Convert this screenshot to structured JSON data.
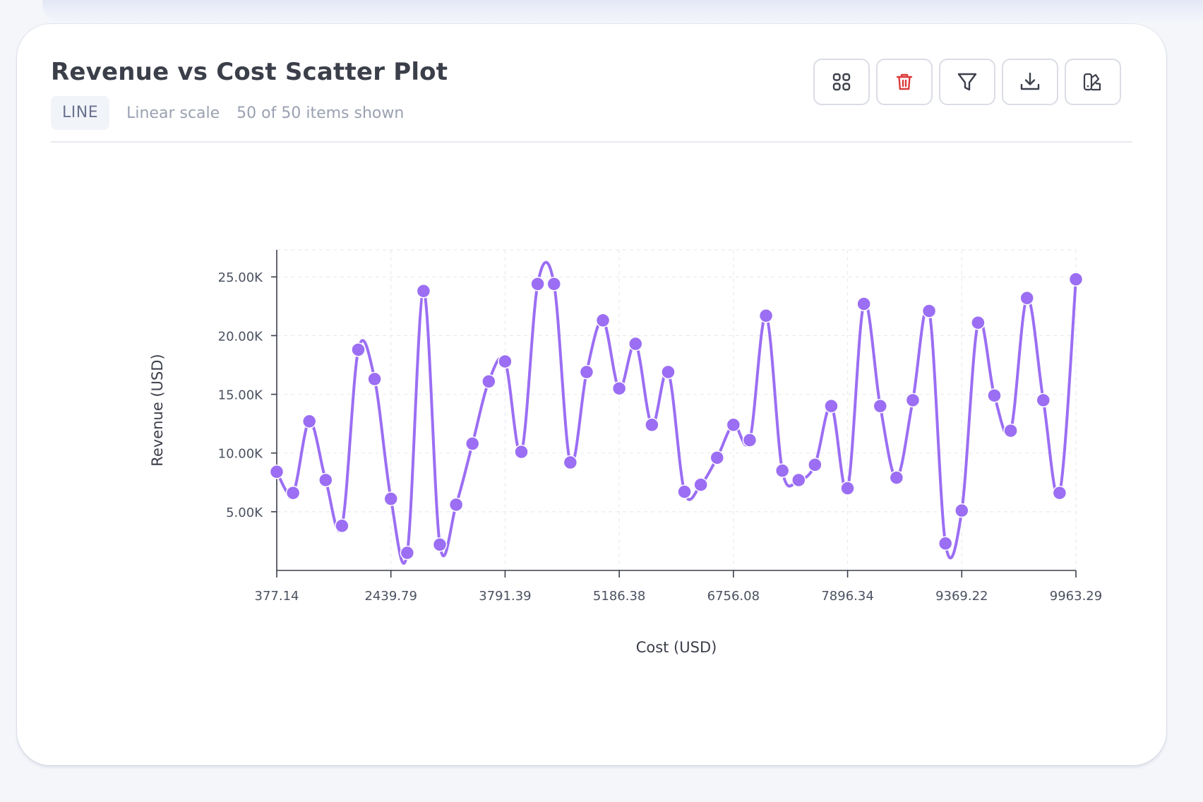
{
  "header": {
    "title": "Revenue vs Cost Scatter Plot",
    "badge": "LINE",
    "scale_text": "Linear scale",
    "items_text": "50 of 50 items shown"
  },
  "toolbar": {
    "buttons": [
      {
        "icon": "grid-icon"
      },
      {
        "icon": "trash-icon",
        "color": "#dc3b3b"
      },
      {
        "icon": "filter-icon"
      },
      {
        "icon": "download-icon"
      },
      {
        "icon": "palette-icon"
      }
    ]
  },
  "colors": {
    "accent": "#9b6ef3",
    "axis": "#3b3f4a",
    "grid": "#e8ebf0"
  },
  "chart_data": {
    "type": "line",
    "title": "",
    "xlabel": "Cost (USD)",
    "ylabel": "Revenue (USD)",
    "x_tick_labels": [
      "377.14",
      "2439.79",
      "3791.39",
      "5186.38",
      "6756.08",
      "7896.34",
      "9369.22",
      "9963.29"
    ],
    "y_ticks": [
      5000,
      10000,
      15000,
      20000,
      25000
    ],
    "y_tick_labels": [
      "5.00K",
      "10.00K",
      "15.00K",
      "20.00K",
      "25.00K"
    ],
    "ylim": [
      0,
      27300
    ],
    "grid": true,
    "values": [
      8400,
      6600,
      12700,
      7700,
      3800,
      18800,
      16300,
      6100,
      1500,
      23800,
      2200,
      5600,
      10800,
      16100,
      17800,
      10100,
      24400,
      24400,
      9200,
      16900,
      21300,
      15500,
      19300,
      12400,
      16900,
      6700,
      7300,
      9600,
      12400,
      11100,
      21700,
      8500,
      7700,
      9000,
      14000,
      7000,
      22700,
      14000,
      7900,
      14500,
      22100,
      2300,
      5100,
      21100,
      14900,
      11900,
      23200,
      14500,
      6600,
      24800
    ]
  }
}
